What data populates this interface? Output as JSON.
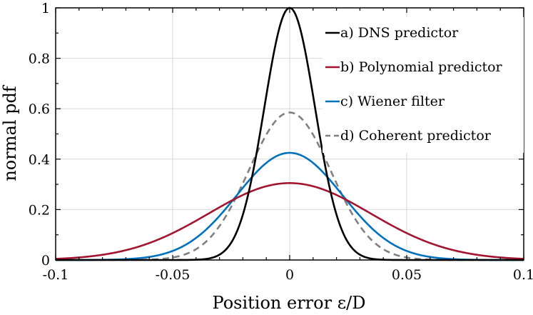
{
  "chart_data": {
    "type": "line",
    "xlabel": "Position error ε/D",
    "ylabel": "normal pdf",
    "xlim": [
      -0.1,
      0.1
    ],
    "ylim": [
      0,
      1
    ],
    "x_ticks": [
      -0.1,
      -0.05,
      0,
      0.05,
      0.1
    ],
    "x_tick_labels": [
      "-0.1",
      "-0.05",
      "0",
      "0.05",
      "0.1"
    ],
    "y_ticks": [
      0,
      0.2,
      0.4,
      0.6,
      0.8,
      1
    ],
    "y_tick_labels": [
      "0",
      "0.2",
      "0.4",
      "0.6",
      "0.8",
      "1"
    ],
    "grid": true,
    "legend_position": "top-right",
    "series": [
      {
        "name": "a) DNS predictor",
        "color": "#000000",
        "dash": "solid",
        "mean": 0,
        "peak": 1.0,
        "sigma": 0.0108
      },
      {
        "name": "b) Polynomial predictor",
        "color": "#a2142f",
        "dash": "solid",
        "mean": 0,
        "peak": 0.305,
        "sigma": 0.0345
      },
      {
        "name": "c) Wiener filter",
        "color": "#0072bd",
        "dash": "solid",
        "mean": 0,
        "peak": 0.425,
        "sigma": 0.0225
      },
      {
        "name": "d) Coherent predictor",
        "color": "#808080",
        "dash": "dashed",
        "mean": 0,
        "peak": 0.585,
        "sigma": 0.0175
      }
    ]
  }
}
